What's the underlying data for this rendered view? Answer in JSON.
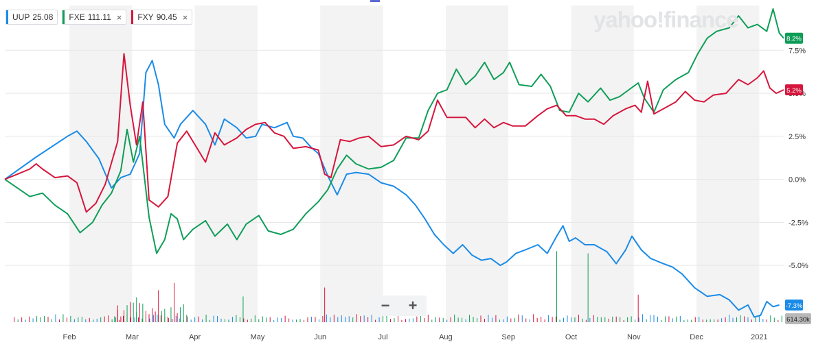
{
  "legend": [
    {
      "ticker": "UUP",
      "value": "25.08",
      "color": "#1a8be8",
      "closable": false
    },
    {
      "ticker": "FXE",
      "value": "111.11",
      "color": "#0f9d58",
      "closable": true
    },
    {
      "ticker": "FXY",
      "value": "90.45",
      "color": "#d6163c",
      "closable": true
    }
  ],
  "close_icon": "×",
  "zoom": {
    "minus": "−",
    "plus": "+"
  },
  "watermark": "yahoo!finance",
  "chart_data": {
    "type": "line",
    "y_unit": "percent",
    "ylim": [
      -8.3,
      10.1
    ],
    "grid": true,
    "ytick_labels": [
      {
        "value": 7.5,
        "label": "7.5%"
      },
      {
        "value": 5.0,
        "label": "5.0%"
      },
      {
        "value": 2.5,
        "label": "2.5%"
      },
      {
        "value": 0.0,
        "label": "0.0%"
      },
      {
        "value": -2.5,
        "label": "-2.5%"
      },
      {
        "value": -5.0,
        "label": "-5.0%"
      }
    ],
    "month_ticks": [
      {
        "label": "Feb",
        "x": 1.03
      },
      {
        "label": "Mar",
        "x": 2.03
      },
      {
        "label": "Apr",
        "x": 3.03
      },
      {
        "label": "May",
        "x": 4.03
      },
      {
        "label": "Jun",
        "x": 5.03
      },
      {
        "label": "Jul",
        "x": 6.03
      },
      {
        "label": "Aug",
        "x": 7.03
      },
      {
        "label": "Sep",
        "x": 8.03
      },
      {
        "label": "Oct",
        "x": 9.03
      },
      {
        "label": "Nov",
        "x": 10.03
      },
      {
        "label": "Dec",
        "x": 11.03
      },
      {
        "label": "2021",
        "x": 12.03
      }
    ],
    "x_range": [
      0.0,
      12.42
    ],
    "series": [
      {
        "name": "UUP",
        "color": "#1a8be8",
        "last_label": "-7.3%",
        "points": [
          [
            0.0,
            0.0
          ],
          [
            0.5,
            1.3
          ],
          [
            1.0,
            2.5
          ],
          [
            1.15,
            2.8
          ],
          [
            1.3,
            2.2
          ],
          [
            1.5,
            1.2
          ],
          [
            1.7,
            -0.5
          ],
          [
            1.85,
            0.1
          ],
          [
            2.0,
            0.3
          ],
          [
            2.15,
            1.5
          ],
          [
            2.25,
            6.2
          ],
          [
            2.35,
            6.9
          ],
          [
            2.45,
            5.5
          ],
          [
            2.55,
            3.2
          ],
          [
            2.7,
            2.4
          ],
          [
            2.8,
            3.2
          ],
          [
            3.0,
            4.0
          ],
          [
            3.2,
            3.2
          ],
          [
            3.35,
            2.0
          ],
          [
            3.5,
            3.5
          ],
          [
            3.7,
            3.0
          ],
          [
            3.85,
            2.4
          ],
          [
            4.0,
            2.5
          ],
          [
            4.1,
            3.2
          ],
          [
            4.3,
            3.0
          ],
          [
            4.5,
            3.3
          ],
          [
            4.6,
            2.5
          ],
          [
            4.75,
            2.4
          ],
          [
            4.9,
            1.8
          ],
          [
            5.0,
            1.5
          ],
          [
            5.15,
            0.2
          ],
          [
            5.3,
            -0.9
          ],
          [
            5.45,
            0.3
          ],
          [
            5.6,
            0.4
          ],
          [
            5.8,
            0.3
          ],
          [
            6.0,
            -0.2
          ],
          [
            6.2,
            -0.4
          ],
          [
            6.4,
            -0.9
          ],
          [
            6.55,
            -1.5
          ],
          [
            6.7,
            -2.3
          ],
          [
            6.85,
            -3.2
          ],
          [
            7.0,
            -3.8
          ],
          [
            7.15,
            -4.3
          ],
          [
            7.3,
            -3.8
          ],
          [
            7.45,
            -4.4
          ],
          [
            7.6,
            -4.7
          ],
          [
            7.75,
            -4.6
          ],
          [
            7.9,
            -5.0
          ],
          [
            8.0,
            -4.8
          ],
          [
            8.15,
            -4.3
          ],
          [
            8.3,
            -4.1
          ],
          [
            8.5,
            -3.8
          ],
          [
            8.65,
            -4.3
          ],
          [
            8.8,
            -3.3
          ],
          [
            8.9,
            -2.7
          ],
          [
            9.0,
            -3.6
          ],
          [
            9.1,
            -3.4
          ],
          [
            9.25,
            -3.8
          ],
          [
            9.4,
            -3.8
          ],
          [
            9.6,
            -4.2
          ],
          [
            9.75,
            -4.9
          ],
          [
            9.9,
            -4.1
          ],
          [
            10.0,
            -3.3
          ],
          [
            10.15,
            -4.1
          ],
          [
            10.3,
            -4.6
          ],
          [
            10.5,
            -4.9
          ],
          [
            10.65,
            -5.1
          ],
          [
            10.8,
            -5.5
          ],
          [
            11.0,
            -6.3
          ],
          [
            11.2,
            -6.8
          ],
          [
            11.4,
            -6.7
          ],
          [
            11.55,
            -7.0
          ],
          [
            11.7,
            -7.6
          ],
          [
            11.85,
            -7.3
          ],
          [
            11.95,
            -8.0
          ],
          [
            12.05,
            -7.9
          ],
          [
            12.15,
            -7.1
          ],
          [
            12.25,
            -7.4
          ],
          [
            12.35,
            -7.3
          ]
        ]
      },
      {
        "name": "FXE",
        "color": "#0f9d58",
        "last_label": "8.2%",
        "points": [
          [
            0.0,
            0.0
          ],
          [
            0.2,
            -0.5
          ],
          [
            0.4,
            -1.0
          ],
          [
            0.6,
            -0.8
          ],
          [
            0.8,
            -1.5
          ],
          [
            1.0,
            -2.0
          ],
          [
            1.2,
            -3.1
          ],
          [
            1.4,
            -2.5
          ],
          [
            1.55,
            -1.5
          ],
          [
            1.7,
            -0.8
          ],
          [
            1.85,
            0.5
          ],
          [
            1.95,
            2.9
          ],
          [
            2.05,
            1.0
          ],
          [
            2.15,
            2.5
          ],
          [
            2.3,
            -2.2
          ],
          [
            2.42,
            -4.3
          ],
          [
            2.55,
            -3.5
          ],
          [
            2.65,
            -2.0
          ],
          [
            2.75,
            -2.3
          ],
          [
            2.85,
            -3.5
          ],
          [
            3.0,
            -2.9
          ],
          [
            3.2,
            -2.4
          ],
          [
            3.35,
            -3.3
          ],
          [
            3.55,
            -2.6
          ],
          [
            3.7,
            -3.5
          ],
          [
            3.85,
            -2.6
          ],
          [
            4.05,
            -2.1
          ],
          [
            4.2,
            -3.0
          ],
          [
            4.4,
            -3.2
          ],
          [
            4.6,
            -2.9
          ],
          [
            4.8,
            -2.0
          ],
          [
            5.0,
            -1.3
          ],
          [
            5.15,
            -0.6
          ],
          [
            5.3,
            0.6
          ],
          [
            5.45,
            1.4
          ],
          [
            5.6,
            0.9
          ],
          [
            5.8,
            0.6
          ],
          [
            6.0,
            0.7
          ],
          [
            6.2,
            1.1
          ],
          [
            6.4,
            2.4
          ],
          [
            6.6,
            2.4
          ],
          [
            6.75,
            4.0
          ],
          [
            6.9,
            5.0
          ],
          [
            7.05,
            5.2
          ],
          [
            7.2,
            6.4
          ],
          [
            7.35,
            5.5
          ],
          [
            7.5,
            6.0
          ],
          [
            7.65,
            6.8
          ],
          [
            7.8,
            5.8
          ],
          [
            7.95,
            6.2
          ],
          [
            8.05,
            6.8
          ],
          [
            8.2,
            5.5
          ],
          [
            8.4,
            5.4
          ],
          [
            8.55,
            6.1
          ],
          [
            8.7,
            5.4
          ],
          [
            8.85,
            4.0
          ],
          [
            9.0,
            3.9
          ],
          [
            9.15,
            5.0
          ],
          [
            9.3,
            4.5
          ],
          [
            9.5,
            5.3
          ],
          [
            9.65,
            4.6
          ],
          [
            9.8,
            4.8
          ],
          [
            9.95,
            5.2
          ],
          [
            10.1,
            5.6
          ],
          [
            10.2,
            4.7
          ],
          [
            10.35,
            3.9
          ],
          [
            10.5,
            5.2
          ],
          [
            10.7,
            5.8
          ],
          [
            10.9,
            6.2
          ],
          [
            11.05,
            7.3
          ],
          [
            11.2,
            8.2
          ],
          [
            11.35,
            8.6
          ],
          [
            11.55,
            8.8
          ],
          [
            11.7,
            9.5
          ],
          [
            11.85,
            8.8
          ],
          [
            12.0,
            9.0
          ],
          [
            12.15,
            8.6
          ],
          [
            12.25,
            9.9
          ],
          [
            12.35,
            8.5
          ],
          [
            12.42,
            8.2
          ]
        ]
      },
      {
        "name": "FXY",
        "color": "#d6163c",
        "last_label": "5.2%",
        "points": [
          [
            0.0,
            0.0
          ],
          [
            0.2,
            0.3
          ],
          [
            0.4,
            0.6
          ],
          [
            0.5,
            0.9
          ],
          [
            0.6,
            0.6
          ],
          [
            0.8,
            0.1
          ],
          [
            1.0,
            0.2
          ],
          [
            1.15,
            -0.2
          ],
          [
            1.3,
            -1.9
          ],
          [
            1.45,
            -1.4
          ],
          [
            1.6,
            -0.3
          ],
          [
            1.8,
            2.2
          ],
          [
            1.9,
            7.3
          ],
          [
            2.0,
            4.3
          ],
          [
            2.1,
            2.0
          ],
          [
            2.2,
            4.5
          ],
          [
            2.3,
            -1.2
          ],
          [
            2.45,
            -1.6
          ],
          [
            2.6,
            -1.0
          ],
          [
            2.75,
            2.1
          ],
          [
            2.9,
            2.8
          ],
          [
            3.05,
            1.9
          ],
          [
            3.2,
            1.0
          ],
          [
            3.35,
            2.7
          ],
          [
            3.5,
            2.0
          ],
          [
            3.7,
            2.4
          ],
          [
            3.85,
            2.9
          ],
          [
            4.0,
            3.2
          ],
          [
            4.15,
            3.3
          ],
          [
            4.3,
            2.7
          ],
          [
            4.45,
            2.5
          ],
          [
            4.6,
            1.8
          ],
          [
            4.8,
            1.9
          ],
          [
            5.0,
            1.7
          ],
          [
            5.1,
            0.3
          ],
          [
            5.2,
            0.1
          ],
          [
            5.35,
            2.3
          ],
          [
            5.5,
            2.2
          ],
          [
            5.65,
            2.4
          ],
          [
            5.8,
            2.5
          ],
          [
            6.0,
            1.9
          ],
          [
            6.2,
            2.0
          ],
          [
            6.4,
            2.5
          ],
          [
            6.6,
            2.3
          ],
          [
            6.75,
            2.8
          ],
          [
            6.9,
            4.6
          ],
          [
            7.05,
            3.6
          ],
          [
            7.2,
            3.6
          ],
          [
            7.35,
            3.6
          ],
          [
            7.5,
            3.0
          ],
          [
            7.65,
            3.5
          ],
          [
            7.8,
            3.0
          ],
          [
            7.95,
            3.3
          ],
          [
            8.1,
            3.1
          ],
          [
            8.3,
            3.1
          ],
          [
            8.5,
            3.7
          ],
          [
            8.65,
            4.1
          ],
          [
            8.8,
            4.3
          ],
          [
            8.95,
            3.7
          ],
          [
            9.1,
            3.7
          ],
          [
            9.25,
            3.5
          ],
          [
            9.4,
            3.5
          ],
          [
            9.55,
            3.2
          ],
          [
            9.7,
            3.7
          ],
          [
            9.9,
            4.1
          ],
          [
            10.05,
            4.3
          ],
          [
            10.15,
            3.9
          ],
          [
            10.25,
            5.7
          ],
          [
            10.35,
            3.8
          ],
          [
            10.5,
            4.1
          ],
          [
            10.7,
            4.5
          ],
          [
            10.85,
            5.1
          ],
          [
            11.0,
            4.6
          ],
          [
            11.15,
            4.5
          ],
          [
            11.3,
            4.9
          ],
          [
            11.5,
            5.0
          ],
          [
            11.7,
            5.8
          ],
          [
            11.85,
            5.5
          ],
          [
            12.0,
            5.9
          ],
          [
            12.1,
            6.3
          ],
          [
            12.2,
            5.3
          ],
          [
            12.3,
            5.0
          ],
          [
            12.42,
            5.2
          ]
        ]
      }
    ],
    "volume": {
      "last_label": "614.30k",
      "spikes": [
        {
          "x": 1.8,
          "rel": 0.38,
          "color": "#d6163c"
        },
        {
          "x": 2.1,
          "rel": 0.56,
          "color": "#0f9d58"
        },
        {
          "x": 2.45,
          "rel": 0.72,
          "color": "#d6163c"
        },
        {
          "x": 2.7,
          "rel": 0.88,
          "color": "#d6163c"
        },
        {
          "x": 3.8,
          "rel": 0.58,
          "color": "#0f9d58"
        },
        {
          "x": 5.1,
          "rel": 0.78,
          "color": "#d6163c"
        },
        {
          "x": 8.8,
          "rel": 1.6,
          "color": "#0f9d58"
        },
        {
          "x": 9.3,
          "rel": 1.55,
          "color": "#0f9d58"
        },
        {
          "x": 10.1,
          "rel": 0.62,
          "color": "#d6163c"
        }
      ]
    }
  }
}
